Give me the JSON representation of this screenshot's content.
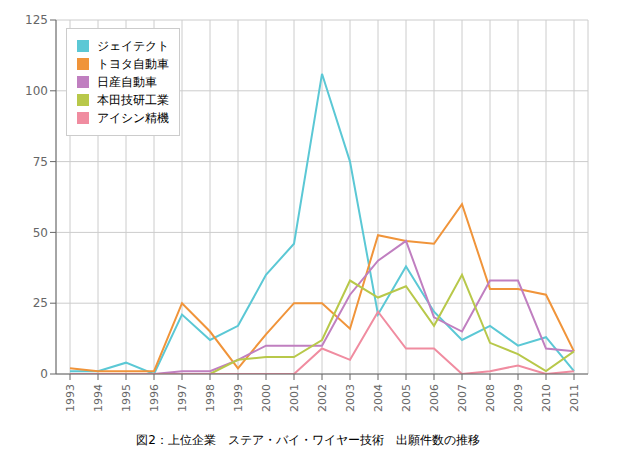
{
  "chart_data": {
    "type": "line",
    "title": "図2：上位企業　ステア・バイ・ワイヤー技術　出願件数の推移",
    "x": [
      1993,
      1994,
      1995,
      1996,
      1997,
      1998,
      1999,
      2000,
      2001,
      2002,
      2003,
      2004,
      2005,
      2006,
      2007,
      2008,
      2009,
      2010,
      2011
    ],
    "xlim": [
      1992.5,
      2011.5
    ],
    "xticks": [
      1993,
      1994,
      1995,
      1996,
      1997,
      1998,
      1999,
      2000,
      2001,
      2002,
      2003,
      2004,
      2005,
      2006,
      2007,
      2008,
      2009,
      2010,
      2011
    ],
    "ylim": [
      0,
      125
    ],
    "yticks": [
      0,
      25,
      50,
      75,
      100,
      125
    ],
    "grid": true,
    "legend": "upper left",
    "series": [
      {
        "name": "ジェイテクト",
        "color": "#5bc8d5",
        "values": [
          1,
          1,
          4,
          0,
          21,
          12,
          17,
          35,
          46,
          106,
          75,
          21,
          38,
          22,
          12,
          17,
          10,
          13,
          1
        ]
      },
      {
        "name": "トヨタ自動車",
        "color": "#f0943a",
        "values": [
          2,
          1,
          1,
          1,
          25,
          15,
          2,
          14,
          25,
          25,
          16,
          49,
          47,
          46,
          60,
          30,
          30,
          28,
          8
        ]
      },
      {
        "name": "日産自動車",
        "color": "#c07fc0",
        "values": [
          0,
          0,
          0,
          0,
          1,
          1,
          5,
          10,
          10,
          10,
          28,
          40,
          47,
          20,
          15,
          33,
          33,
          9,
          8
        ]
      },
      {
        "name": "本田技研工業",
        "color": "#b8c84a",
        "values": [
          0,
          0,
          0,
          0,
          0,
          0,
          5,
          6,
          6,
          12,
          33,
          27,
          31,
          17,
          35,
          11,
          7,
          1,
          8
        ]
      },
      {
        "name": "アイシン精機",
        "color": "#f08ca0",
        "values": [
          0,
          0,
          0,
          0,
          0,
          0,
          0,
          0,
          0,
          9,
          5,
          22,
          9,
          9,
          0,
          1,
          3,
          0,
          1
        ]
      }
    ]
  }
}
